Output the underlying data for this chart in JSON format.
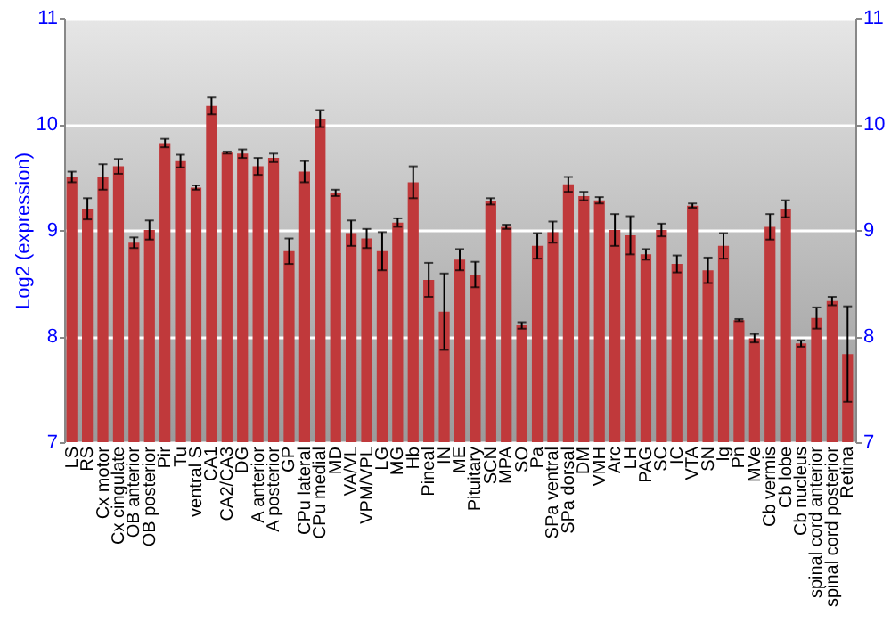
{
  "chart_data": {
    "type": "bar",
    "ylabel": "Log2 (expression)",
    "categories": [
      "LS",
      "RS",
      "Cx motor",
      "Cx cingulate",
      "OB anterior",
      "OB posterior",
      "Pir",
      "Tu",
      "ventral S",
      "CA1",
      "CA2/CA3",
      "DG",
      "A anterior",
      "A posterior",
      "GP",
      "CPu lateral",
      "CPu medial",
      "MD",
      "VA/VL",
      "VPM/VPL",
      "LG",
      "MG",
      "Hb",
      "Pineal",
      "IN",
      "ME",
      "Pituitary",
      "SCN",
      "MPA",
      "SO",
      "Pa",
      "SPa ventral",
      "SPa dorsal",
      "DM",
      "VMH",
      "Arc",
      "LH",
      "PAG",
      "SC",
      "IC",
      "VTA",
      "SN",
      "Ig",
      "Pn",
      "MVe",
      "Cb vermis",
      "Cb lobe",
      "Cb nucleus",
      "spinal cord anterior",
      "spinal cord posterior",
      "Retina"
    ],
    "values": [
      9.5,
      9.2,
      9.5,
      9.6,
      8.88,
      9.0,
      9.82,
      9.65,
      9.4,
      10.17,
      9.73,
      9.72,
      9.6,
      9.68,
      8.8,
      9.55,
      10.05,
      9.35,
      8.97,
      8.92,
      8.8,
      9.07,
      9.45,
      8.53,
      8.23,
      8.72,
      8.58,
      9.27,
      9.03,
      8.1,
      8.85,
      8.98,
      9.43,
      9.32,
      9.28,
      9.0,
      8.95,
      8.77,
      9.0,
      8.68,
      9.23,
      8.62,
      8.85,
      8.15,
      7.98,
      9.03,
      9.2,
      7.93,
      8.17,
      8.33,
      7.83
    ],
    "errors": [
      0.05,
      0.1,
      0.12,
      0.07,
      0.05,
      0.09,
      0.04,
      0.06,
      0.02,
      0.08,
      0.01,
      0.04,
      0.08,
      0.04,
      0.12,
      0.1,
      0.08,
      0.03,
      0.12,
      0.09,
      0.18,
      0.04,
      0.15,
      0.16,
      0.36,
      0.1,
      0.12,
      0.03,
      0.02,
      0.03,
      0.12,
      0.1,
      0.07,
      0.04,
      0.03,
      0.15,
      0.18,
      0.05,
      0.06,
      0.08,
      0.02,
      0.12,
      0.12,
      0.01,
      0.04,
      0.12,
      0.08,
      0.03,
      0.1,
      0.04,
      0.45
    ],
    "color": "#c0393b",
    "ylim": [
      7,
      11
    ],
    "yticks": [
      7,
      8,
      9,
      10,
      11
    ],
    "y2lim": [
      7,
      11
    ],
    "y2ticks": [
      7,
      8,
      9,
      10,
      11
    ],
    "grid": "y"
  }
}
